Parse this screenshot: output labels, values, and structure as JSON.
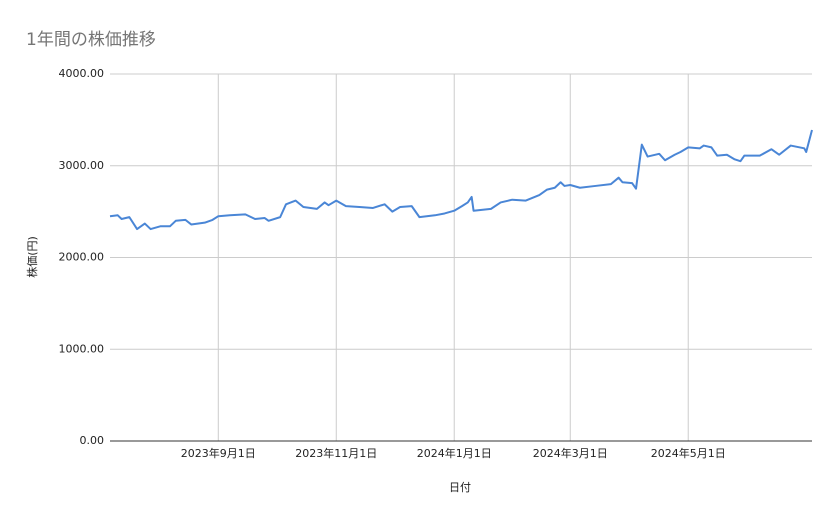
{
  "chart_data": {
    "type": "line",
    "title": "1年間の株価推移",
    "x_label": "日付",
    "y_label": "株価(円)",
    "x": [
      "2023-07-07",
      "2023-07-11",
      "2023-07-13",
      "2023-07-17",
      "2023-07-21",
      "2023-07-25",
      "2023-07-28",
      "2023-08-02",
      "2023-08-07",
      "2023-08-10",
      "2023-08-15",
      "2023-08-18",
      "2023-08-25",
      "2023-08-29",
      "2023-09-01",
      "2023-09-07",
      "2023-09-15",
      "2023-09-20",
      "2023-09-25",
      "2023-09-27",
      "2023-10-03",
      "2023-10-06",
      "2023-10-11",
      "2023-10-15",
      "2023-10-22",
      "2023-10-26",
      "2023-10-28",
      "2023-11-01",
      "2023-11-06",
      "2023-11-13",
      "2023-11-20",
      "2023-11-26",
      "2023-11-30",
      "2023-12-04",
      "2023-12-10",
      "2023-12-14",
      "2023-12-22",
      "2023-12-27",
      "2024-01-01",
      "2024-01-05",
      "2024-01-08",
      "2024-01-10",
      "2024-01-11",
      "2024-01-20",
      "2024-01-25",
      "2024-01-31",
      "2024-02-07",
      "2024-02-14",
      "2024-02-18",
      "2024-02-22",
      "2024-02-25",
      "2024-02-27",
      "2024-03-01",
      "2024-03-06",
      "2024-03-14",
      "2024-03-22",
      "2024-03-26",
      "2024-03-28",
      "2024-04-02",
      "2024-04-04",
      "2024-04-07",
      "2024-04-10",
      "2024-04-16",
      "2024-04-19",
      "2024-04-24",
      "2024-04-27",
      "2024-05-01",
      "2024-05-07",
      "2024-05-09",
      "2024-05-13",
      "2024-05-16",
      "2024-05-21",
      "2024-05-25",
      "2024-05-28",
      "2024-05-30",
      "2024-06-07",
      "2024-06-13",
      "2024-06-17",
      "2024-06-23",
      "2024-06-30",
      "2024-07-01",
      "2024-07-04"
    ],
    "series": [
      {
        "name": "株価",
        "color": "#4a86d6",
        "values": [
          2450,
          2460,
          2420,
          2440,
          2310,
          2370,
          2310,
          2340,
          2340,
          2400,
          2410,
          2360,
          2380,
          2410,
          2450,
          2460,
          2470,
          2420,
          2430,
          2400,
          2440,
          2580,
          2620,
          2550,
          2530,
          2600,
          2570,
          2620,
          2560,
          2550,
          2540,
          2580,
          2500,
          2550,
          2560,
          2440,
          2460,
          2480,
          2510,
          2560,
          2600,
          2660,
          2510,
          2530,
          2600,
          2630,
          2620,
          2680,
          2740,
          2760,
          2820,
          2780,
          2790,
          2760,
          2780,
          2800,
          2870,
          2820,
          2810,
          2750,
          3230,
          3100,
          3130,
          3060,
          3120,
          3150,
          3200,
          3190,
          3220,
          3200,
          3110,
          3120,
          3070,
          3050,
          3110,
          3110,
          3180,
          3120,
          3220,
          3190,
          3150,
          3390
        ]
      }
    ],
    "xlim": [
      "2023-07-07",
      "2024-07-04"
    ],
    "xticks": [
      {
        "value": "2023-09-01",
        "label": "2023年9月1日"
      },
      {
        "value": "2023-11-01",
        "label": "2023年11月1日"
      },
      {
        "value": "2024-01-01",
        "label": "2024年1月1日"
      },
      {
        "value": "2024-03-01",
        "label": "2024年3月1日"
      },
      {
        "value": "2024-05-01",
        "label": "2024年5月1日"
      }
    ],
    "ylim": [
      0,
      4000
    ],
    "yticks": [
      {
        "value": 0,
        "label": "0.00"
      },
      {
        "value": 1000,
        "label": "1000.00"
      },
      {
        "value": 2000,
        "label": "2000.00"
      },
      {
        "value": 3000,
        "label": "3000.00"
      },
      {
        "value": 4000,
        "label": "4000.00"
      }
    ],
    "grid": true
  }
}
